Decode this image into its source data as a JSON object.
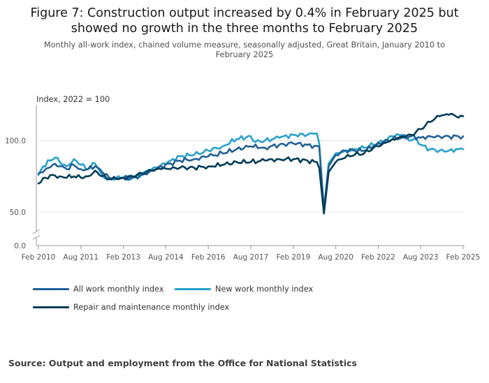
{
  "title": "Figure 7: Construction output increased by 0.4% in February 2025 but showed no growth in the three months to February 2025",
  "subtitle": "Monthly all-work index, chained volume measure, seasonally adjusted, Great Britain, January 2010 to February 2025",
  "source": "Source: Output and employment from the Office for National Statistics",
  "colors": {
    "all_work": "#206095",
    "new_work": "#27a0cc",
    "repair": "#003c57",
    "grid": "#e6e6e6",
    "axis": "#999999"
  },
  "chart_data": {
    "type": "line",
    "units_label": "Index, 2022 = 100",
    "ylim": [
      0,
      125
    ],
    "axis_break_between": [
      0,
      50
    ],
    "y_ticks": [
      {
        "value": 0,
        "label": "0.0"
      },
      {
        "value": 50,
        "label": "50.0"
      },
      {
        "value": 100,
        "label": "100.0"
      }
    ],
    "x_start": "Feb 2010",
    "x_end": "Feb 2025",
    "x_ticks": [
      {
        "month_index": 0,
        "label": "Feb 2010"
      },
      {
        "month_index": 18,
        "label": "Aug 2011"
      },
      {
        "month_index": 36,
        "label": "Feb 2013"
      },
      {
        "month_index": 54,
        "label": "Aug 2014"
      },
      {
        "month_index": 72,
        "label": "Feb 2016"
      },
      {
        "month_index": 90,
        "label": "Aug 2017"
      },
      {
        "month_index": 108,
        "label": "Feb 2019"
      },
      {
        "month_index": 126,
        "label": "Aug 2020"
      },
      {
        "month_index": 144,
        "label": "Feb 2022"
      },
      {
        "month_index": 162,
        "label": "Aug 2023"
      },
      {
        "month_index": 180,
        "label": "Feb 2025"
      }
    ],
    "series": [
      {
        "name": "All work monthly index",
        "key": "all_work",
        "anchors": [
          [
            0,
            77
          ],
          [
            3,
            80
          ],
          [
            6,
            83
          ],
          [
            9,
            82
          ],
          [
            12,
            80
          ],
          [
            15,
            83
          ],
          [
            18,
            80
          ],
          [
            21,
            80
          ],
          [
            24,
            82
          ],
          [
            27,
            78
          ],
          [
            30,
            74
          ],
          [
            33,
            74
          ],
          [
            36,
            74
          ],
          [
            40,
            74
          ],
          [
            44,
            76
          ],
          [
            48,
            79
          ],
          [
            52,
            82
          ],
          [
            56,
            84
          ],
          [
            60,
            86
          ],
          [
            66,
            87
          ],
          [
            72,
            89
          ],
          [
            78,
            91
          ],
          [
            84,
            94
          ],
          [
            90,
            96
          ],
          [
            96,
            95
          ],
          [
            102,
            97
          ],
          [
            108,
            98
          ],
          [
            114,
            97
          ],
          [
            119,
            96
          ],
          [
            121,
            52
          ],
          [
            123,
            82
          ],
          [
            126,
            90
          ],
          [
            130,
            93
          ],
          [
            134,
            93
          ],
          [
            138,
            93
          ],
          [
            142,
            96
          ],
          [
            146,
            99
          ],
          [
            150,
            101
          ],
          [
            154,
            102
          ],
          [
            158,
            103
          ],
          [
            162,
            102
          ],
          [
            166,
            103
          ],
          [
            170,
            103
          ],
          [
            174,
            103
          ],
          [
            178,
            103
          ],
          [
            180,
            103
          ]
        ]
      },
      {
        "name": "New work monthly index",
        "key": "new_work",
        "anchors": [
          [
            0,
            76
          ],
          [
            2,
            82
          ],
          [
            5,
            86
          ],
          [
            7,
            88
          ],
          [
            9,
            85
          ],
          [
            12,
            82
          ],
          [
            15,
            87
          ],
          [
            18,
            83
          ],
          [
            21,
            80
          ],
          [
            24,
            84
          ],
          [
            27,
            76
          ],
          [
            30,
            73
          ],
          [
            33,
            74
          ],
          [
            36,
            74
          ],
          [
            40,
            74
          ],
          [
            44,
            77
          ],
          [
            48,
            80
          ],
          [
            52,
            83
          ],
          [
            56,
            86
          ],
          [
            60,
            89
          ],
          [
            66,
            90
          ],
          [
            72,
            93
          ],
          [
            78,
            96
          ],
          [
            84,
            101
          ],
          [
            90,
            103
          ],
          [
            92,
            99
          ],
          [
            96,
            100
          ],
          [
            102,
            102
          ],
          [
            108,
            104
          ],
          [
            114,
            104
          ],
          [
            118,
            105
          ],
          [
            119,
            98
          ],
          [
            121,
            51
          ],
          [
            123,
            84
          ],
          [
            126,
            91
          ],
          [
            130,
            93
          ],
          [
            134,
            94
          ],
          [
            138,
            95
          ],
          [
            142,
            97
          ],
          [
            146,
            99
          ],
          [
            150,
            103
          ],
          [
            154,
            104
          ],
          [
            158,
            100
          ],
          [
            160,
            102
          ],
          [
            162,
            97
          ],
          [
            166,
            94
          ],
          [
            170,
            93
          ],
          [
            174,
            93
          ],
          [
            178,
            94
          ],
          [
            180,
            94
          ]
        ]
      },
      {
        "name": "Repair and maintenance monthly index",
        "key": "repair",
        "anchors": [
          [
            0,
            70
          ],
          [
            3,
            74
          ],
          [
            6,
            76
          ],
          [
            9,
            75
          ],
          [
            12,
            74
          ],
          [
            15,
            75
          ],
          [
            18,
            74
          ],
          [
            21,
            75
          ],
          [
            24,
            79
          ],
          [
            27,
            75
          ],
          [
            30,
            73
          ],
          [
            33,
            73
          ],
          [
            36,
            74
          ],
          [
            40,
            75
          ],
          [
            44,
            77
          ],
          [
            48,
            79
          ],
          [
            52,
            80
          ],
          [
            56,
            80
          ],
          [
            60,
            81
          ],
          [
            66,
            81
          ],
          [
            72,
            82
          ],
          [
            78,
            83
          ],
          [
            84,
            85
          ],
          [
            90,
            85
          ],
          [
            96,
            86
          ],
          [
            102,
            87
          ],
          [
            108,
            87
          ],
          [
            114,
            86
          ],
          [
            118,
            85
          ],
          [
            119,
            81
          ],
          [
            121,
            49
          ],
          [
            123,
            78
          ],
          [
            126,
            85
          ],
          [
            130,
            88
          ],
          [
            134,
            90
          ],
          [
            138,
            91
          ],
          [
            142,
            95
          ],
          [
            146,
            98
          ],
          [
            150,
            101
          ],
          [
            154,
            103
          ],
          [
            158,
            104
          ],
          [
            162,
            108
          ],
          [
            166,
            113
          ],
          [
            170,
            117
          ],
          [
            174,
            118
          ],
          [
            176,
            118
          ],
          [
            178,
            116
          ],
          [
            180,
            117
          ]
        ]
      }
    ]
  }
}
